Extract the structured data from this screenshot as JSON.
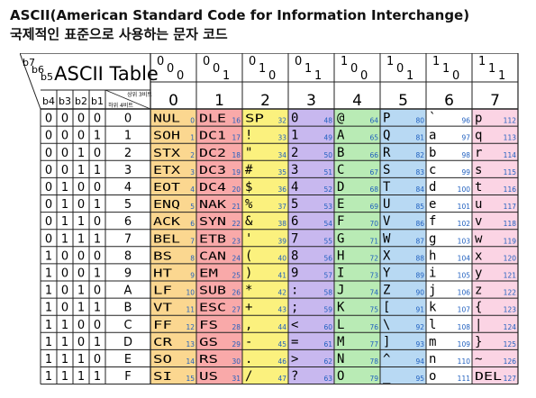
{
  "title_line1": "ASCII(American Standard Code for Information Interchange)",
  "title_line2": "국제적인 표준으로 사용하는 문자 코드",
  "table": {
    "heading": "ASCII Table",
    "corner_bits": [
      "b7",
      "b6",
      "b5"
    ],
    "bit_headers": [
      "b4",
      "b3",
      "b2",
      "b1"
    ],
    "upper_bits_label": "상위 3비트",
    "lower_bits_label": "하위 4비트",
    "column_bits": [
      "000",
      "001",
      "010",
      "011",
      "100",
      "101",
      "110",
      "111"
    ],
    "column_numbers": [
      "0",
      "1",
      "2",
      "3",
      "4",
      "5",
      "6",
      "7"
    ],
    "row_bits": [
      [
        "0",
        "0",
        "0",
        "0"
      ],
      [
        "0",
        "0",
        "0",
        "1"
      ],
      [
        "0",
        "0",
        "1",
        "0"
      ],
      [
        "0",
        "0",
        "1",
        "1"
      ],
      [
        "0",
        "1",
        "0",
        "0"
      ],
      [
        "0",
        "1",
        "0",
        "1"
      ],
      [
        "0",
        "1",
        "1",
        "0"
      ],
      [
        "0",
        "1",
        "1",
        "1"
      ],
      [
        "1",
        "0",
        "0",
        "0"
      ],
      [
        "1",
        "0",
        "0",
        "1"
      ],
      [
        "1",
        "0",
        "1",
        "0"
      ],
      [
        "1",
        "0",
        "1",
        "1"
      ],
      [
        "1",
        "1",
        "0",
        "0"
      ],
      [
        "1",
        "1",
        "0",
        "1"
      ],
      [
        "1",
        "1",
        "1",
        "0"
      ],
      [
        "1",
        "1",
        "1",
        "1"
      ]
    ],
    "row_labels": [
      "0",
      "1",
      "2",
      "3",
      "4",
      "5",
      "6",
      "7",
      "8",
      "9",
      "A",
      "B",
      "C",
      "D",
      "E",
      "F"
    ],
    "col0": [
      [
        "NUL",
        "0"
      ],
      [
        "SOH",
        "1"
      ],
      [
        "STX",
        "2"
      ],
      [
        "ETX",
        "3"
      ],
      [
        "EOT",
        "4"
      ],
      [
        "ENQ",
        "5"
      ],
      [
        "ACK",
        "6"
      ],
      [
        "BEL",
        "7"
      ],
      [
        "BS",
        "8"
      ],
      [
        "HT",
        "9"
      ],
      [
        "LF",
        "10"
      ],
      [
        "VT",
        "11"
      ],
      [
        "FF",
        "12"
      ],
      [
        "CR",
        "13"
      ],
      [
        "SO",
        "14"
      ],
      [
        "SI",
        "15"
      ]
    ],
    "col1": [
      [
        "DLE",
        "16"
      ],
      [
        "DC1",
        "17"
      ],
      [
        "DC2",
        "18"
      ],
      [
        "DC3",
        "19"
      ],
      [
        "DC4",
        "20"
      ],
      [
        "NAK",
        "21"
      ],
      [
        "SYN",
        "22"
      ],
      [
        "ETB",
        "23"
      ],
      [
        "CAN",
        "24"
      ],
      [
        "EM",
        "25"
      ],
      [
        "SUB",
        "26"
      ],
      [
        "ESC",
        "27"
      ],
      [
        "FS",
        "28"
      ],
      [
        "GS",
        "29"
      ],
      [
        "RS",
        "30"
      ],
      [
        "US",
        "31"
      ]
    ],
    "col2": [
      [
        "SP",
        "32"
      ],
      [
        "!",
        "33"
      ],
      [
        "\"",
        "34"
      ],
      [
        "#",
        "35"
      ],
      [
        "$",
        "36"
      ],
      [
        "%",
        "37"
      ],
      [
        "&",
        "38"
      ],
      [
        "'",
        "39"
      ],
      [
        "(",
        "40"
      ],
      [
        ")",
        "41"
      ],
      [
        "*",
        "42"
      ],
      [
        "+",
        "43"
      ],
      [
        ",",
        "44"
      ],
      [
        "-",
        "45"
      ],
      [
        ".",
        "46"
      ],
      [
        "/",
        "47"
      ]
    ],
    "col3": [
      [
        "0",
        "48"
      ],
      [
        "1",
        "49"
      ],
      [
        "2",
        "50"
      ],
      [
        "3",
        "51"
      ],
      [
        "4",
        "52"
      ],
      [
        "5",
        "53"
      ],
      [
        "6",
        "54"
      ],
      [
        "7",
        "55"
      ],
      [
        "8",
        "56"
      ],
      [
        "9",
        "57"
      ],
      [
        ":",
        "58"
      ],
      [
        ";",
        "59"
      ],
      [
        "<",
        "60"
      ],
      [
        "=",
        "61"
      ],
      [
        ">",
        "62"
      ],
      [
        "?",
        "63"
      ]
    ],
    "col4": [
      [
        "@",
        "64"
      ],
      [
        "A",
        "65"
      ],
      [
        "B",
        "66"
      ],
      [
        "C",
        "67"
      ],
      [
        "D",
        "68"
      ],
      [
        "E",
        "69"
      ],
      [
        "F",
        "70"
      ],
      [
        "G",
        "71"
      ],
      [
        "H",
        "72"
      ],
      [
        "I",
        "73"
      ],
      [
        "J",
        "74"
      ],
      [
        "K",
        "75"
      ],
      [
        "L",
        "76"
      ],
      [
        "M",
        "77"
      ],
      [
        "N",
        "78"
      ],
      [
        "O",
        "79"
      ]
    ],
    "col5": [
      [
        "P",
        "80"
      ],
      [
        "Q",
        "81"
      ],
      [
        "R",
        "82"
      ],
      [
        "S",
        "83"
      ],
      [
        "T",
        "84"
      ],
      [
        "U",
        "85"
      ],
      [
        "V",
        "86"
      ],
      [
        "W",
        "87"
      ],
      [
        "X",
        "88"
      ],
      [
        "Y",
        "89"
      ],
      [
        "Z",
        "90"
      ],
      [
        "[",
        "91"
      ],
      [
        "\\",
        "92"
      ],
      [
        "]",
        "93"
      ],
      [
        "^",
        "94"
      ],
      [
        "_",
        "95"
      ]
    ],
    "col6": [
      [
        "`",
        "96"
      ],
      [
        "a",
        "97"
      ],
      [
        "b",
        "98"
      ],
      [
        "c",
        "99"
      ],
      [
        "d",
        "100"
      ],
      [
        "e",
        "101"
      ],
      [
        "f",
        "102"
      ],
      [
        "g",
        "103"
      ],
      [
        "h",
        "104"
      ],
      [
        "i",
        "105"
      ],
      [
        "j",
        "106"
      ],
      [
        "k",
        "107"
      ],
      [
        "l",
        "108"
      ],
      [
        "m",
        "109"
      ],
      [
        "n",
        "110"
      ],
      [
        "o",
        "111"
      ]
    ],
    "col7": [
      [
        "p",
        "112"
      ],
      [
        "q",
        "113"
      ],
      [
        "r",
        "114"
      ],
      [
        "s",
        "115"
      ],
      [
        "t",
        "116"
      ],
      [
        "u",
        "117"
      ],
      [
        "v",
        "118"
      ],
      [
        "w",
        "119"
      ],
      [
        "x",
        "120"
      ],
      [
        "y",
        "121"
      ],
      [
        "z",
        "122"
      ],
      [
        "{",
        "123"
      ],
      [
        "|",
        "124"
      ],
      [
        "}",
        "125"
      ],
      [
        "~",
        "126"
      ],
      [
        "DEL",
        "127"
      ]
    ]
  },
  "colors": {
    "col0": "#fbd790",
    "col1": "#f9a9a9",
    "col2": "#fbf17e",
    "col3": "#c8b8ef",
    "col4": "#b9ebb5",
    "col5": "#b8d9f3",
    "col6": "#ffffff",
    "col7": "#fbd4e4",
    "code_number": "#1f5fbf",
    "grid": "#222222"
  }
}
